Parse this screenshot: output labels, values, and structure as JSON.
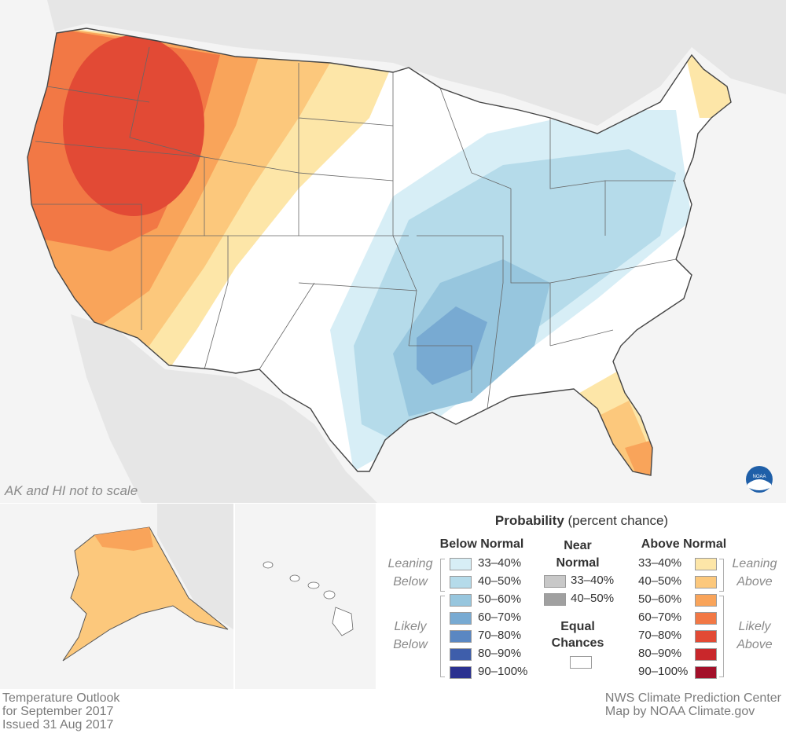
{
  "map": {
    "scale_note": "AK and HI not to scale",
    "logo_text": "NOAA"
  },
  "legend": {
    "title_bold": "Probability",
    "title_rest": " (percent chance)",
    "below_normal": {
      "heading": "Below Normal",
      "leaning_label_1": "Leaning",
      "leaning_label_2": "Below",
      "likely_label_1": "Likely",
      "likely_label_2": "Below",
      "items": [
        {
          "label": "33–40%",
          "color": "#d7eef6"
        },
        {
          "label": "40–50%",
          "color": "#b5dbea"
        },
        {
          "label": "50–60%",
          "color": "#97c6de"
        },
        {
          "label": "60–70%",
          "color": "#78aad2"
        },
        {
          "label": "70–80%",
          "color": "#5a87c2"
        },
        {
          "label": "80–90%",
          "color": "#3e5eab"
        },
        {
          "label": "90–100%",
          "color": "#2b3190"
        }
      ]
    },
    "near_normal": {
      "heading_1": "Near",
      "heading_2": "Normal",
      "items": [
        {
          "label": "33–40%",
          "color": "#c8c8c8"
        },
        {
          "label": "40–50%",
          "color": "#a0a0a0"
        }
      ]
    },
    "equal_chances": {
      "heading_1": "Equal",
      "heading_2": "Chances",
      "color": "#ffffff"
    },
    "above_normal": {
      "heading": "Above Normal",
      "leaning_label_1": "Leaning",
      "leaning_label_2": "Above",
      "likely_label_1": "Likely",
      "likely_label_2": "Above",
      "items": [
        {
          "label": "33–40%",
          "color": "#fde6a8"
        },
        {
          "label": "40–50%",
          "color": "#fcc87c"
        },
        {
          "label": "50–60%",
          "color": "#f9a45a"
        },
        {
          "label": "60–70%",
          "color": "#f27845"
        },
        {
          "label": "70–80%",
          "color": "#e24a35"
        },
        {
          "label": "80–90%",
          "color": "#c9272b"
        },
        {
          "label": "90–100%",
          "color": "#a3102a"
        }
      ]
    }
  },
  "footer": {
    "left_line_1": "Temperature Outlook",
    "left_line_2": "for September 2017",
    "left_line_3": "Issued 31 Aug 2017",
    "right_line_1": "NWS Climate Prediction Center",
    "right_line_2": "Map by NOAA Climate.gov"
  },
  "colors": {
    "land_outside": "#e6e6e6",
    "water": "#f4f4f4",
    "border": "#555555"
  }
}
